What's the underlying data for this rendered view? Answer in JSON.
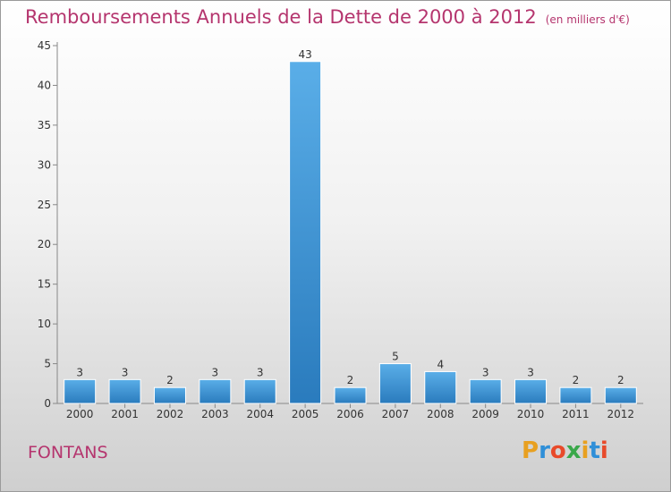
{
  "header": {
    "title": "Remboursements Annuels de la Dette de 2000 à 2012",
    "subtitle": "(en milliers d'€)"
  },
  "footer": {
    "commune": "FONTANS",
    "logo_text": "Proxiti"
  },
  "colors": {
    "title": "#b5356e",
    "bar_top": "#5aaee8",
    "bar_bottom": "#2a7bbd",
    "logo_letters": [
      "#e8a020",
      "#2f8fd8",
      "#e84a2a",
      "#3aa84a",
      "#e8a020",
      "#2f8fd8",
      "#e84a2a"
    ]
  },
  "chart_data": {
    "type": "bar",
    "title": "Remboursements Annuels de la Dette de 2000 à 2012",
    "categories": [
      "2000",
      "2001",
      "2002",
      "2003",
      "2004",
      "2005",
      "2006",
      "2007",
      "2008",
      "2009",
      "2010",
      "2011",
      "2012"
    ],
    "values": [
      3,
      3,
      2,
      3,
      3,
      43,
      2,
      5,
      4,
      3,
      3,
      2,
      2
    ],
    "ylim": [
      0,
      45
    ],
    "yticks": [
      0,
      5,
      10,
      15,
      20,
      25,
      30,
      35,
      40,
      45
    ],
    "grid": false,
    "legend": "none"
  }
}
